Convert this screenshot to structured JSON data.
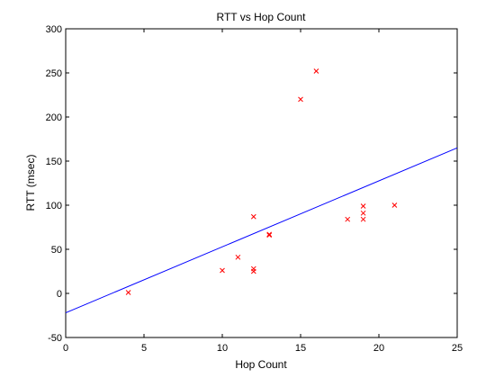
{
  "chart_data": {
    "type": "scatter",
    "title": "RTT vs Hop Count",
    "xlabel": "Hop Count",
    "ylabel": "RTT (msec)",
    "xlim": [
      0,
      25
    ],
    "ylim": [
      -50,
      300
    ],
    "xticks": [
      0,
      5,
      10,
      15,
      20,
      25
    ],
    "yticks": [
      -50,
      0,
      50,
      100,
      150,
      200,
      250,
      300
    ],
    "grid": false,
    "marker_color": "#ff0000",
    "line_color": "#0000ff",
    "points": [
      {
        "x": 4,
        "y": 1
      },
      {
        "x": 10,
        "y": 26
      },
      {
        "x": 11,
        "y": 41
      },
      {
        "x": 12,
        "y": 87
      },
      {
        "x": 12,
        "y": 28
      },
      {
        "x": 12,
        "y": 25
      },
      {
        "x": 13,
        "y": 67
      },
      {
        "x": 13,
        "y": 66
      },
      {
        "x": 15,
        "y": 220
      },
      {
        "x": 16,
        "y": 252
      },
      {
        "x": 18,
        "y": 84
      },
      {
        "x": 19,
        "y": 99
      },
      {
        "x": 19,
        "y": 91
      },
      {
        "x": 19,
        "y": 84
      },
      {
        "x": 21,
        "y": 100
      }
    ],
    "fit_line": {
      "x": [
        0,
        25
      ],
      "y": [
        -22,
        165
      ]
    }
  }
}
